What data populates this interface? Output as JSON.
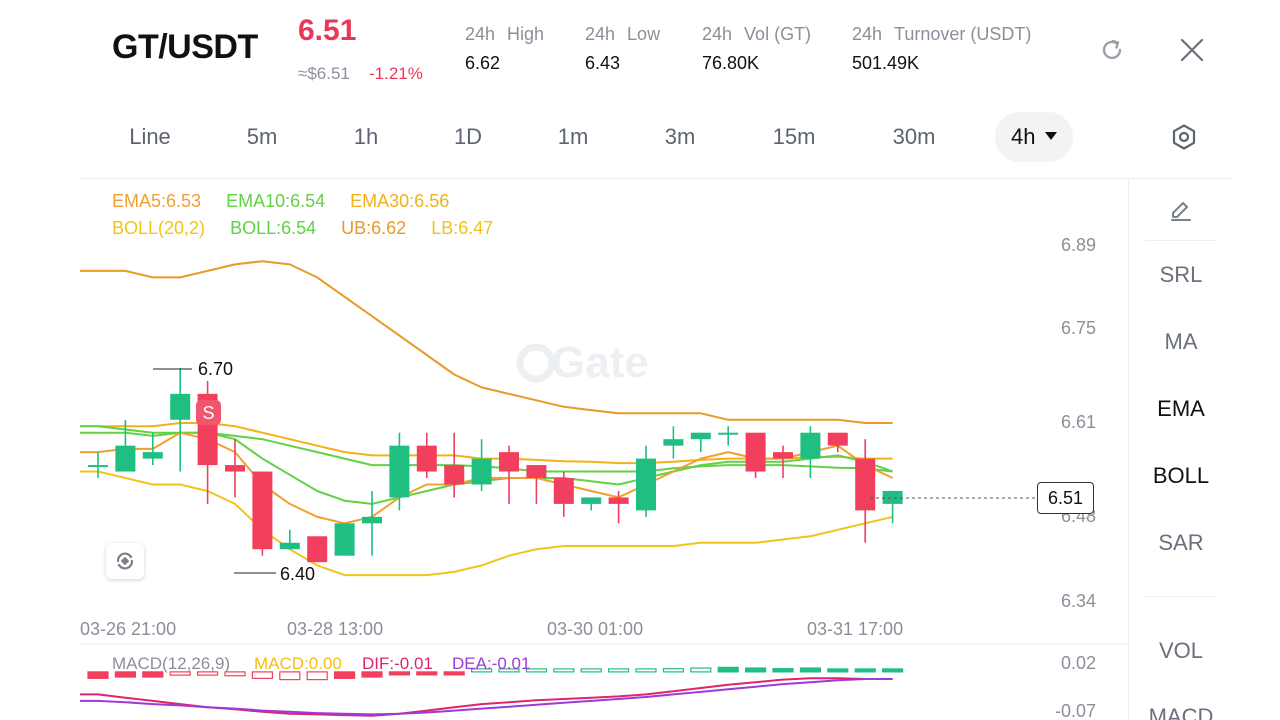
{
  "header": {
    "pair": "GT/USDT",
    "price": "6.51",
    "approx_price": "≈$6.51",
    "change": "-1.21%",
    "stats": [
      {
        "period": "24h",
        "label": "High",
        "value": "6.62"
      },
      {
        "period": "24h",
        "label": "Low",
        "value": "6.43"
      },
      {
        "period": "24h",
        "label": "Vol (GT)",
        "value": "76.80K"
      },
      {
        "period": "24h",
        "label": "Turnover (USDT)",
        "value": "501.49K"
      }
    ],
    "refresh_icon": "refresh-icon",
    "close_icon": "close-icon"
  },
  "intervals": {
    "items": [
      "Line",
      "5m",
      "1h",
      "1D",
      "1m",
      "3m",
      "15m",
      "30m"
    ],
    "active": "4h",
    "settings_icon": "hexagon-settings-icon"
  },
  "colors": {
    "up": "#1fbf82",
    "down": "#f23f5e",
    "ema5": "#f0a030",
    "ema10": "#62d146",
    "ema30": "#f3b017",
    "boll": "#f0c419",
    "ub": "#e89a28",
    "lb": "#f0c419",
    "macd": "#f7bd15",
    "dif": "#e0246c",
    "dea": "#9c3bd6"
  },
  "legend": {
    "ema5": "EMA5:6.53",
    "ema10": "EMA10:6.54",
    "ema30": "EMA30:6.56",
    "boll": "BOLL(20,2)",
    "boll_mid": "BOLL:6.54",
    "ub": "UB:6.62",
    "lb": "LB:6.47"
  },
  "macd_legend": {
    "title": "MACD(12,26,9)",
    "macd": "MACD:0.00",
    "dif": "DIF:-0.01",
    "dea": "DEA:-0.01"
  },
  "y_axis": [
    "6.89",
    "6.75",
    "6.61",
    "6.48",
    "6.34"
  ],
  "x_axis": [
    "03-26 21:00",
    "03-28 13:00",
    "03-30 01:00",
    "03-31 17:00"
  ],
  "macd_axis": [
    "0.02",
    "-0.07"
  ],
  "current_price_tag": "6.51",
  "high_marker": "6.70",
  "low_marker": "6.40",
  "sell_marker": "S",
  "watermark": "Gate",
  "side_panel": {
    "items": [
      "SRL",
      "MA",
      "EMA",
      "BOLL",
      "SAR",
      "VOL",
      "MACD"
    ],
    "draw_icon": "pencil-icon"
  },
  "chart_data": {
    "type": "candlestick",
    "ylim": [
      6.34,
      6.89
    ],
    "candles": [
      {
        "o": 6.55,
        "h": 6.57,
        "l": 6.53,
        "c": 6.55
      },
      {
        "o": 6.54,
        "h": 6.62,
        "l": 6.54,
        "c": 6.58
      },
      {
        "o": 6.56,
        "h": 6.6,
        "l": 6.55,
        "c": 6.57
      },
      {
        "o": 6.62,
        "h": 6.7,
        "l": 6.54,
        "c": 6.66
      },
      {
        "o": 6.66,
        "h": 6.68,
        "l": 6.49,
        "c": 6.55
      },
      {
        "o": 6.55,
        "h": 6.59,
        "l": 6.5,
        "c": 6.54
      },
      {
        "o": 6.54,
        "h": 6.54,
        "l": 6.41,
        "c": 6.42
      },
      {
        "o": 6.42,
        "h": 6.45,
        "l": 6.42,
        "c": 6.43
      },
      {
        "o": 6.44,
        "h": 6.44,
        "l": 6.4,
        "c": 6.4
      },
      {
        "o": 6.41,
        "h": 6.46,
        "l": 6.41,
        "c": 6.46
      },
      {
        "o": 6.46,
        "h": 6.51,
        "l": 6.41,
        "c": 6.47
      },
      {
        "o": 6.5,
        "h": 6.6,
        "l": 6.48,
        "c": 6.58
      },
      {
        "o": 6.58,
        "h": 6.6,
        "l": 6.53,
        "c": 6.54
      },
      {
        "o": 6.55,
        "h": 6.6,
        "l": 6.5,
        "c": 6.52
      },
      {
        "o": 6.52,
        "h": 6.59,
        "l": 6.51,
        "c": 6.56
      },
      {
        "o": 6.57,
        "h": 6.58,
        "l": 6.49,
        "c": 6.54
      },
      {
        "o": 6.55,
        "h": 6.55,
        "l": 6.49,
        "c": 6.53
      },
      {
        "o": 6.53,
        "h": 6.54,
        "l": 6.47,
        "c": 6.49
      },
      {
        "o": 6.49,
        "h": 6.5,
        "l": 6.48,
        "c": 6.5
      },
      {
        "o": 6.5,
        "h": 6.51,
        "l": 6.46,
        "c": 6.49
      },
      {
        "o": 6.48,
        "h": 6.58,
        "l": 6.47,
        "c": 6.56
      },
      {
        "o": 6.58,
        "h": 6.61,
        "l": 6.56,
        "c": 6.59
      },
      {
        "o": 6.59,
        "h": 6.6,
        "l": 6.57,
        "c": 6.6
      },
      {
        "o": 6.6,
        "h": 6.61,
        "l": 6.58,
        "c": 6.6
      },
      {
        "o": 6.6,
        "h": 6.6,
        "l": 6.53,
        "c": 6.54
      },
      {
        "o": 6.57,
        "h": 6.58,
        "l": 6.53,
        "c": 6.56
      },
      {
        "o": 6.56,
        "h": 6.61,
        "l": 6.53,
        "c": 6.6
      },
      {
        "o": 6.6,
        "h": 6.6,
        "l": 6.57,
        "c": 6.58
      },
      {
        "o": 6.56,
        "h": 6.59,
        "l": 6.43,
        "c": 6.48
      },
      {
        "o": 6.49,
        "h": 6.51,
        "l": 6.46,
        "c": 6.51
      }
    ],
    "ema5": [
      6.57,
      6.575,
      6.575,
      6.6,
      6.59,
      6.57,
      6.52,
      6.49,
      6.47,
      6.46,
      6.47,
      6.5,
      6.52,
      6.52,
      6.53,
      6.53,
      6.53,
      6.52,
      6.51,
      6.5,
      6.52,
      6.54,
      6.56,
      6.57,
      6.56,
      6.56,
      6.57,
      6.58,
      6.55,
      6.53
    ],
    "ema10": [
      6.6,
      6.6,
      6.595,
      6.6,
      6.6,
      6.59,
      6.56,
      6.535,
      6.51,
      6.495,
      6.49,
      6.5,
      6.51,
      6.52,
      6.525,
      6.53,
      6.53,
      6.53,
      6.525,
      6.52,
      6.53,
      6.54,
      6.55,
      6.555,
      6.555,
      6.555,
      6.56,
      6.565,
      6.555,
      6.54
    ],
    "ema30": [
      6.61,
      6.61,
      6.61,
      6.615,
      6.615,
      6.61,
      6.6,
      6.59,
      6.58,
      6.57,
      6.565,
      6.565,
      6.565,
      6.565,
      6.56,
      6.56,
      6.558,
      6.556,
      6.555,
      6.553,
      6.553,
      6.555,
      6.558,
      6.56,
      6.56,
      6.56,
      6.562,
      6.563,
      6.56,
      6.56
    ],
    "ub": [
      6.85,
      6.85,
      6.84,
      6.84,
      6.85,
      6.86,
      6.865,
      6.86,
      6.84,
      6.81,
      6.78,
      6.75,
      6.72,
      6.69,
      6.67,
      6.66,
      6.65,
      6.64,
      6.635,
      6.63,
      6.63,
      6.63,
      6.63,
      6.62,
      6.62,
      6.62,
      6.62,
      6.62,
      6.615,
      6.615
    ],
    "boll": [
      6.61,
      6.605,
      6.6,
      6.6,
      6.6,
      6.595,
      6.59,
      6.58,
      6.57,
      6.56,
      6.55,
      6.55,
      6.55,
      6.55,
      6.548,
      6.545,
      6.54,
      6.54,
      6.54,
      6.54,
      6.54,
      6.545,
      6.548,
      6.55,
      6.55,
      6.55,
      6.548,
      6.546,
      6.545,
      6.54
    ],
    "lb": [
      6.54,
      6.53,
      6.52,
      6.52,
      6.51,
      6.49,
      6.45,
      6.42,
      6.395,
      6.38,
      6.38,
      6.38,
      6.38,
      6.385,
      6.395,
      6.41,
      6.42,
      6.425,
      6.425,
      6.425,
      6.425,
      6.425,
      6.43,
      6.43,
      6.43,
      6.435,
      6.44,
      6.45,
      6.46,
      6.47
    ],
    "macd_hist": [
      -0.01,
      -0.008,
      -0.008,
      -0.005,
      -0.005,
      -0.006,
      -0.01,
      -0.012,
      -0.012,
      -0.01,
      -0.008,
      -0.004,
      -0.002,
      -0.001,
      0.0,
      0.001,
      0.001,
      0.0,
      0.001,
      0.001,
      0.003,
      0.005,
      0.006,
      0.007,
      0.006,
      0.005,
      0.006,
      0.004,
      0.001,
      0.0
    ],
    "dif": [
      -0.035,
      -0.04,
      -0.045,
      -0.05,
      -0.055,
      -0.058,
      -0.062,
      -0.065,
      -0.066,
      -0.067,
      -0.068,
      -0.065,
      -0.06,
      -0.055,
      -0.05,
      -0.047,
      -0.044,
      -0.042,
      -0.04,
      -0.038,
      -0.035,
      -0.03,
      -0.025,
      -0.02,
      -0.016,
      -0.012,
      -0.01,
      -0.01,
      -0.011,
      -0.011
    ],
    "dea": [
      -0.045,
      -0.047,
      -0.05,
      -0.052,
      -0.055,
      -0.057,
      -0.06,
      -0.062,
      -0.064,
      -0.065,
      -0.066,
      -0.065,
      -0.063,
      -0.06,
      -0.057,
      -0.054,
      -0.051,
      -0.048,
      -0.045,
      -0.042,
      -0.039,
      -0.035,
      -0.031,
      -0.027,
      -0.023,
      -0.019,
      -0.016,
      -0.013,
      -0.011,
      -0.011
    ]
  }
}
